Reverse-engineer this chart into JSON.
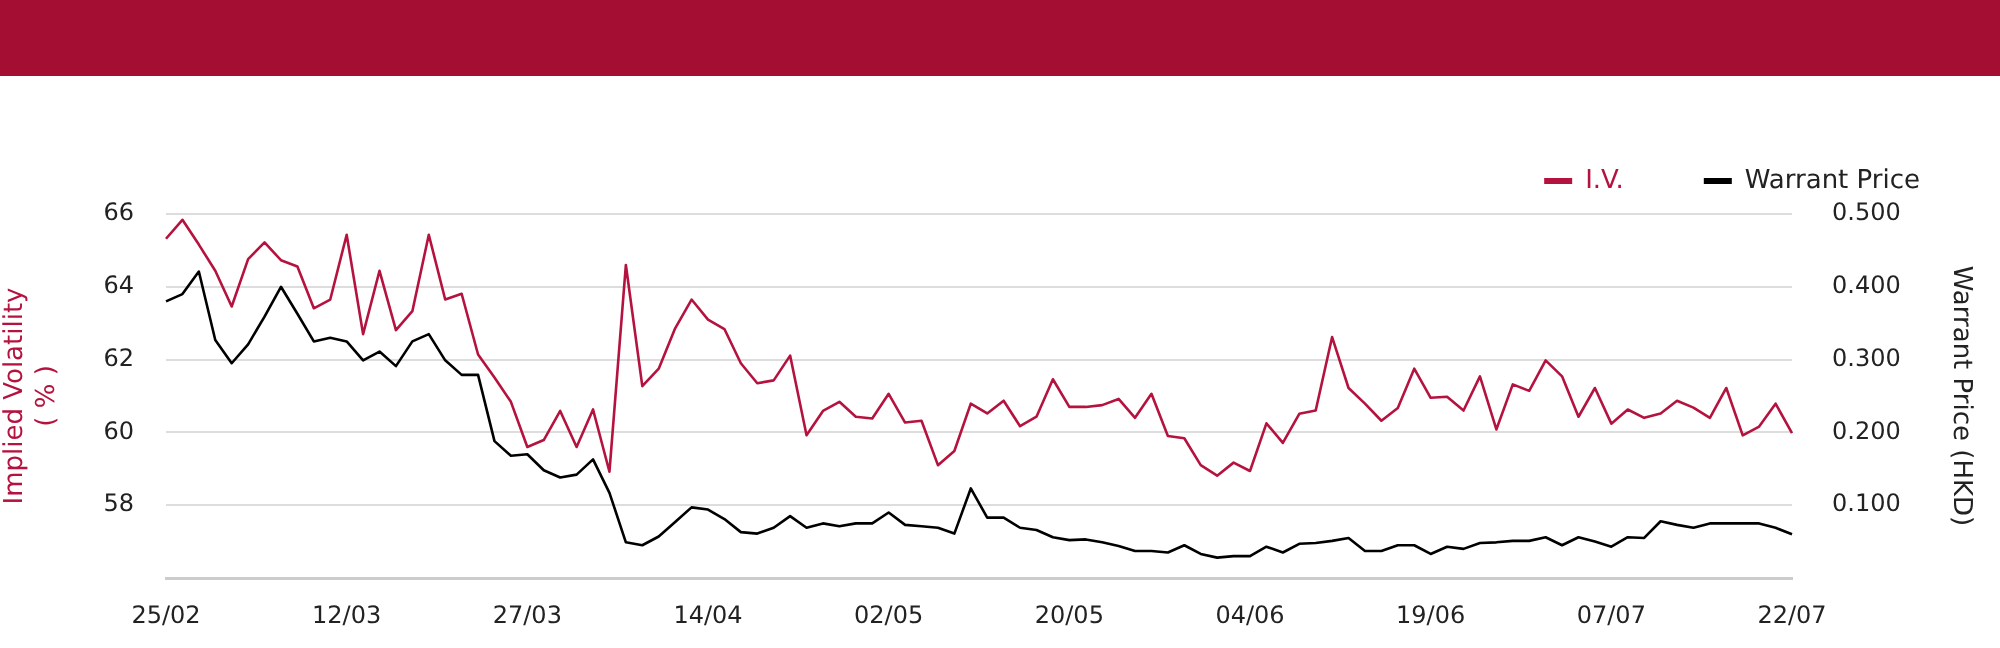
{
  "chart_data": {
    "type": "line",
    "ylabel": "Implied Volatility\n( % )",
    "y2label": "Warrant Price (HKD)",
    "categories": [
      "25/02",
      null,
      null,
      null,
      null,
      null,
      null,
      null,
      null,
      null,
      null,
      "12/03",
      null,
      null,
      null,
      null,
      null,
      null,
      null,
      null,
      null,
      null,
      "27/03",
      null,
      null,
      null,
      null,
      null,
      null,
      null,
      null,
      null,
      null,
      "14/04",
      null,
      null,
      null,
      null,
      null,
      null,
      null,
      null,
      null,
      null,
      "02/05",
      null,
      null,
      null,
      null,
      null,
      null,
      null,
      null,
      null,
      null,
      "20/05",
      null,
      null,
      null,
      null,
      null,
      null,
      null,
      null,
      null,
      null,
      "04/06",
      null,
      null,
      null,
      null,
      null,
      null,
      null,
      null,
      null,
      null,
      "19/06",
      null,
      null,
      null,
      null,
      null,
      null,
      null,
      null,
      null,
      null,
      "07/07",
      null,
      null,
      null,
      null,
      null,
      null,
      null,
      null,
      null,
      null,
      "22/07"
    ],
    "series": [
      {
        "name": "I.V.",
        "color": "#b5133f",
        "values": [
          65.32,
          65.84,
          65.16,
          64.44,
          63.46,
          64.76,
          65.22,
          64.73,
          64.56,
          63.41,
          63.65,
          65.43,
          62.7,
          64.44,
          62.81,
          63.33,
          65.43,
          63.65,
          63.81,
          62.14,
          61.51,
          60.84,
          59.6,
          59.79,
          60.59,
          59.6,
          60.63,
          58.92,
          64.6,
          61.27,
          61.75,
          62.86,
          63.65,
          63.1,
          62.84,
          61.9,
          61.35,
          61.43,
          62.11,
          59.92,
          60.59,
          60.84,
          60.43,
          60.38,
          61.06,
          60.27,
          60.32,
          59.1,
          59.49,
          60.79,
          60.52,
          60.87,
          60.17,
          60.43,
          61.46,
          60.7,
          60.7,
          60.75,
          60.92,
          60.4,
          61.06,
          59.9,
          59.84,
          59.1,
          58.81,
          59.17,
          58.94,
          60.25,
          59.71,
          60.51,
          60.6,
          62.62,
          61.22,
          60.79,
          60.32,
          60.67,
          61.75,
          60.95,
          60.98,
          60.6,
          61.54,
          60.08,
          61.32,
          61.14,
          61.98,
          61.54,
          60.43,
          61.22,
          60.24,
          60.63,
          60.4,
          60.52,
          60.87,
          60.68,
          60.4,
          61.22,
          59.92,
          60.16,
          60.79,
          59.98
        ]
      },
      {
        "name": "Warrant Price",
        "color": "#000000",
        "axis": "y2",
        "values": [
          0.38,
          0.39,
          0.421,
          0.327,
          0.295,
          0.321,
          0.359,
          0.4,
          0.363,
          0.325,
          0.33,
          0.325,
          0.299,
          0.311,
          0.291,
          0.325,
          0.335,
          0.299,
          0.279,
          0.279,
          0.188,
          0.168,
          0.17,
          0.148,
          0.138,
          0.142,
          0.163,
          0.117,
          0.049,
          0.045,
          0.057,
          0.077,
          0.097,
          0.094,
          0.081,
          0.063,
          0.061,
          0.069,
          0.085,
          0.069,
          0.075,
          0.071,
          0.075,
          0.075,
          0.09,
          0.073,
          0.071,
          0.069,
          0.061,
          0.123,
          0.083,
          0.083,
          0.069,
          0.066,
          0.056,
          0.052,
          0.053,
          0.049,
          0.044,
          0.037,
          0.037,
          0.035,
          0.045,
          0.033,
          0.028,
          0.03,
          0.03,
          0.043,
          0.035,
          0.047,
          0.048,
          0.051,
          0.055,
          0.037,
          0.037,
          0.045,
          0.045,
          0.033,
          0.043,
          0.04,
          0.048,
          0.049,
          0.051,
          0.051,
          0.056,
          0.045,
          0.056,
          0.05,
          0.043,
          0.056,
          0.055,
          0.078,
          0.073,
          0.069,
          0.075,
          0.075,
          0.075,
          0.075,
          0.069,
          0.06
        ]
      }
    ],
    "ylim": [
      56,
      66
    ],
    "yticks": [
      58,
      60,
      62,
      64,
      66
    ],
    "y2lim": [
      0,
      0.5
    ],
    "y2ticks": [
      {
        "value": 0.1,
        "label": "0.100"
      },
      {
        "value": 0.2,
        "label": "0.200"
      },
      {
        "value": 0.3,
        "label": "0.300"
      },
      {
        "value": 0.4,
        "label": "0.400"
      },
      {
        "value": 0.5,
        "label": "0.500"
      }
    ],
    "grid": "y",
    "legend": "top right",
    "marker": "none",
    "line_style": "solid"
  }
}
